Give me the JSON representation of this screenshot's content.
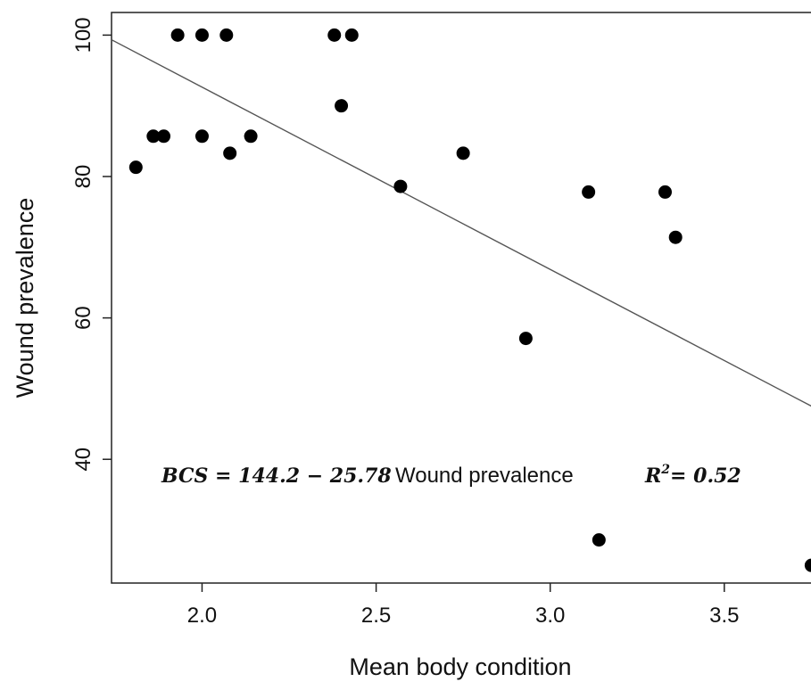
{
  "chart_data": {
    "type": "scatter",
    "xlabel": "Mean body condition",
    "ylabel": "Wound prevalence",
    "xlim": [
      1.74,
      3.79
    ],
    "ylim": [
      22.5,
      103.2
    ],
    "xticks": [
      2.0,
      2.5,
      3.0,
      3.5
    ],
    "xtick_labels": [
      "2.0",
      "2.5",
      "3.0",
      "3.5"
    ],
    "yticks": [
      40,
      60,
      80,
      100
    ],
    "ytick_labels": [
      "40",
      "60",
      "80",
      "100"
    ],
    "grid": false,
    "points": [
      {
        "x": 1.81,
        "y": 81.3
      },
      {
        "x": 1.86,
        "y": 85.7
      },
      {
        "x": 1.89,
        "y": 85.7
      },
      {
        "x": 1.93,
        "y": 100
      },
      {
        "x": 2.0,
        "y": 100
      },
      {
        "x": 2.0,
        "y": 85.7
      },
      {
        "x": 2.07,
        "y": 100
      },
      {
        "x": 2.08,
        "y": 83.3
      },
      {
        "x": 2.14,
        "y": 85.7
      },
      {
        "x": 2.38,
        "y": 100
      },
      {
        "x": 2.4,
        "y": 90.0
      },
      {
        "x": 2.43,
        "y": 100
      },
      {
        "x": 2.57,
        "y": 78.6
      },
      {
        "x": 2.75,
        "y": 83.3
      },
      {
        "x": 2.93,
        "y": 57.1
      },
      {
        "x": 3.11,
        "y": 77.8
      },
      {
        "x": 3.14,
        "y": 28.6
      },
      {
        "x": 3.33,
        "y": 77.8
      },
      {
        "x": 3.36,
        "y": 71.4
      },
      {
        "x": 3.75,
        "y": 25.0
      }
    ],
    "fit_line": {
      "intercept": 144.2,
      "slope": -25.78
    },
    "annotation": {
      "equation_math": "BCS = 144.2 − 25.78",
      "equation_text": "Wound prevalence",
      "r2_math": "= 0.52"
    }
  }
}
